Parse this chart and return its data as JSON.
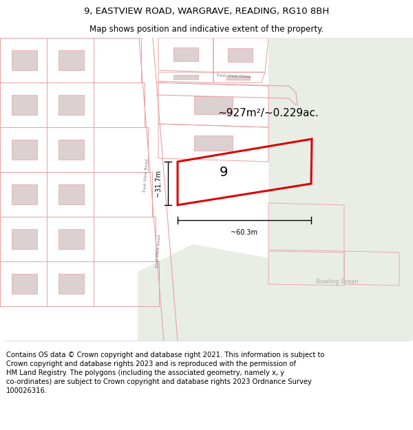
{
  "title": "9, EASTVIEW ROAD, WARGRAVE, READING, RG10 8BH",
  "subtitle": "Map shows position and indicative extent of the property.",
  "footer": "Contains OS data © Crown copyright and database right 2021. This information is subject to\nCrown copyright and database rights 2023 and is reproduced with the permission of\nHM Land Registry. The polygons (including the associated geometry, namely x, y\nco-ordinates) are subject to Crown copyright and database rights 2023 Ordnance Survey\n100026316.",
  "title_fontsize": 9.5,
  "subtitle_fontsize": 8.5,
  "footer_fontsize": 7.2,
  "area_text": "~927m²/~0.229ac.",
  "dim_width_text": "~60.3m",
  "dim_height_text": "~31.7m",
  "highlight_color": "#dd0000",
  "road_color": "#e8a0a0",
  "map_bg": "#f5f0ef",
  "green_bg": "#e8ede6",
  "bowling_green_label": "Bowling Green",
  "street_label_evr": "East View Road",
  "street_label_evc": "East View Close"
}
